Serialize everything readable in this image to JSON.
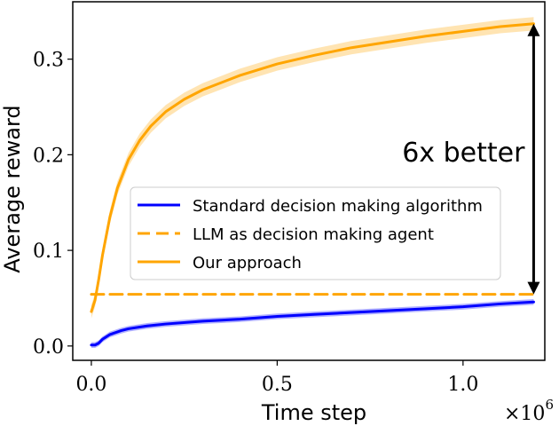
{
  "chart_data": {
    "type": "line",
    "xlabel": "Time step",
    "ylabel": "Average reward",
    "x_scale_label": "×10",
    "x_scale_exp": "6",
    "xlim": [
      -0.05,
      1.22
    ],
    "ylim": [
      -0.015,
      0.36
    ],
    "x_ticks": [
      0.0,
      0.5,
      1.0
    ],
    "x_tick_labels": [
      "0.0",
      "0.5",
      "1.0"
    ],
    "y_ticks": [
      0.0,
      0.1,
      0.2,
      0.3
    ],
    "y_tick_labels": [
      "0.0",
      "0.1",
      "0.2",
      "0.3"
    ],
    "grid": false,
    "legend_position": "center",
    "series": [
      {
        "name": "Standard decision making algorithm",
        "color": "#0000ff",
        "style": "solid",
        "x": [
          0.0,
          0.01,
          0.02,
          0.03,
          0.05,
          0.08,
          0.1,
          0.15,
          0.2,
          0.3,
          0.4,
          0.5,
          0.6,
          0.7,
          0.8,
          0.9,
          1.0,
          1.1,
          1.19
        ],
        "y": [
          0.001,
          0.001,
          0.003,
          0.007,
          0.012,
          0.016,
          0.018,
          0.021,
          0.023,
          0.026,
          0.028,
          0.031,
          0.033,
          0.035,
          0.037,
          0.039,
          0.041,
          0.044,
          0.046
        ],
        "band": 0.003
      },
      {
        "name": "LLM as decision making agent",
        "color": "#ffa500",
        "style": "dashed",
        "x": [
          0.0,
          1.19
        ],
        "y": [
          0.054,
          0.054
        ]
      },
      {
        "name": "Our approach",
        "color": "#ffa500",
        "style": "solid",
        "x": [
          0.0,
          0.01,
          0.02,
          0.03,
          0.04,
          0.05,
          0.07,
          0.1,
          0.13,
          0.16,
          0.2,
          0.25,
          0.3,
          0.4,
          0.5,
          0.6,
          0.7,
          0.8,
          0.9,
          1.0,
          1.1,
          1.19
        ],
        "y": [
          0.036,
          0.048,
          0.07,
          0.095,
          0.115,
          0.135,
          0.165,
          0.195,
          0.215,
          0.23,
          0.245,
          0.258,
          0.268,
          0.283,
          0.295,
          0.304,
          0.312,
          0.318,
          0.324,
          0.329,
          0.334,
          0.337
        ],
        "band": 0.007
      }
    ],
    "annotation": {
      "text": "6x better",
      "x": 1.19,
      "y_from": 0.054,
      "y_to": 0.337
    }
  }
}
